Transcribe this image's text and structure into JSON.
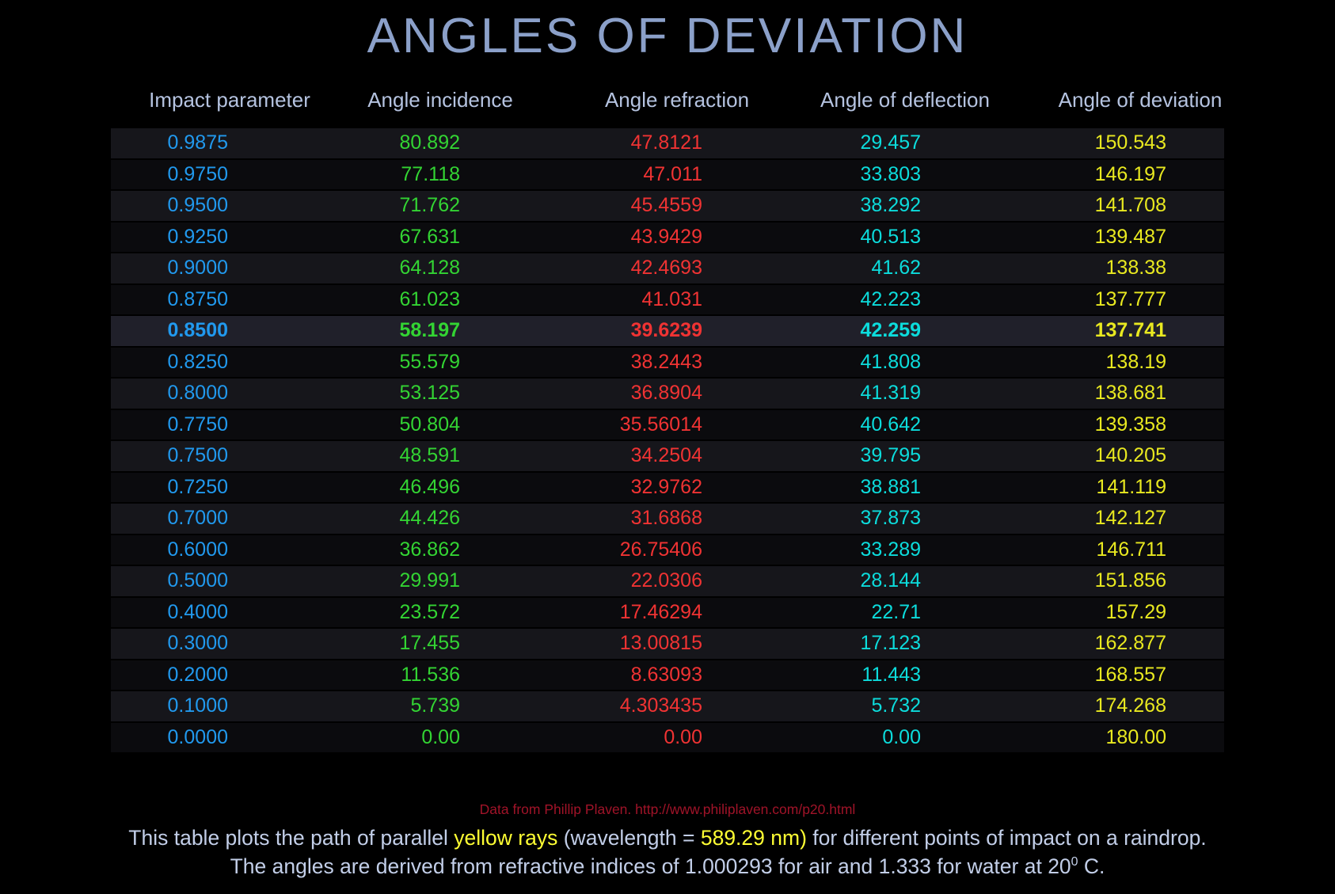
{
  "title": "ANGLES OF DEVIATION",
  "chart_data": {
    "type": "table",
    "title": "ANGLES OF DEVIATION",
    "columns": [
      "Impact parameter",
      "Angle incidence",
      "Angle refraction",
      "Angle of deflection",
      "Angle of deviation"
    ],
    "column_keys": [
      "impact-parameter",
      "angle-incidence",
      "angle-refraction",
      "angle-of-deflection",
      "angle-of-deviation"
    ],
    "column_colors": [
      "#2199ee",
      "#33d433",
      "#f03333",
      "#0cdcdc",
      "#e9e920"
    ],
    "highlighted_row_index": 6,
    "rows": [
      [
        "0.9875",
        "80.892",
        "47.8121",
        "29.457",
        "150.543"
      ],
      [
        "0.9750",
        "77.118",
        "47.011",
        "33.803",
        "146.197"
      ],
      [
        "0.9500",
        "71.762",
        "45.4559",
        "38.292",
        "141.708"
      ],
      [
        "0.9250",
        "67.631",
        "43.9429",
        "40.513",
        "139.487"
      ],
      [
        "0.9000",
        "64.128",
        "42.4693",
        "41.62",
        "138.38"
      ],
      [
        "0.8750",
        "61.023",
        "41.031",
        "42.223",
        "137.777"
      ],
      [
        "0.8500",
        "58.197",
        "39.6239",
        "42.259",
        "137.741"
      ],
      [
        "0.8250",
        "55.579",
        "38.2443",
        "41.808",
        "138.19"
      ],
      [
        "0.8000",
        "53.125",
        "36.8904",
        "41.319",
        "138.681"
      ],
      [
        "0.7750",
        "50.804",
        "35.56014",
        "40.642",
        "139.358"
      ],
      [
        "0.7500",
        "48.591",
        "34.2504",
        "39.795",
        "140.205"
      ],
      [
        "0.7250",
        "46.496",
        "32.9762",
        "38.881",
        "141.119"
      ],
      [
        "0.7000",
        "44.426",
        "31.6868",
        "37.873",
        "142.127"
      ],
      [
        "0.6000",
        "36.862",
        "26.75406",
        "33.289",
        "146.711"
      ],
      [
        "0.5000",
        "29.991",
        "22.0306",
        "28.144",
        "151.856"
      ],
      [
        "0.4000",
        "23.572",
        "17.46294",
        "22.71",
        "157.29"
      ],
      [
        "0.3000",
        "17.455",
        "13.00815",
        "17.123",
        "162.877"
      ],
      [
        "0.2000",
        "11.536",
        "8.63093",
        "11.443",
        "168.557"
      ],
      [
        "0.1000",
        "5.739",
        "4.303435",
        "5.732",
        "174.268"
      ],
      [
        "0.0000",
        "0.00",
        "0.00",
        "0.00",
        "180.00"
      ]
    ]
  },
  "attribution": "Data from Phillip Plaven. http://www.philiplaven.com/p20.html",
  "footer": {
    "line1_parts": [
      {
        "text": "This table plots the path of parallel ",
        "color": "base"
      },
      {
        "text": "yellow rays",
        "color": "yellow"
      },
      {
        "text": " (wavelength = ",
        "color": "base"
      },
      {
        "text": "589.29 nm)",
        "color": "yellow"
      },
      {
        "text": " for different points of impact on a raindrop.",
        "color": "base"
      }
    ],
    "line2_pre": "The angles are derived from refractive indices of 1.000293 for air and 1.333 for water at 20",
    "line2_sup": "0",
    "line2_post": " C."
  },
  "colors": {
    "background": "#000000",
    "title_text": "#8ba0c9",
    "header_text": "#b5c3e0",
    "footer_text": "#c2cee8",
    "footer_highlight": "#ffff33",
    "attribution_text": "#a01328",
    "impact_parameter": "#2199ee",
    "angle_incidence": "#33d433",
    "angle_refraction": "#f03333",
    "angle_of_deflection": "#0cdcdc",
    "angle_of_deviation": "#e9e920",
    "row_band_light": "#16161b",
    "row_band_dark": "#0b0b0e",
    "row_highlight_band": "#20202a"
  }
}
